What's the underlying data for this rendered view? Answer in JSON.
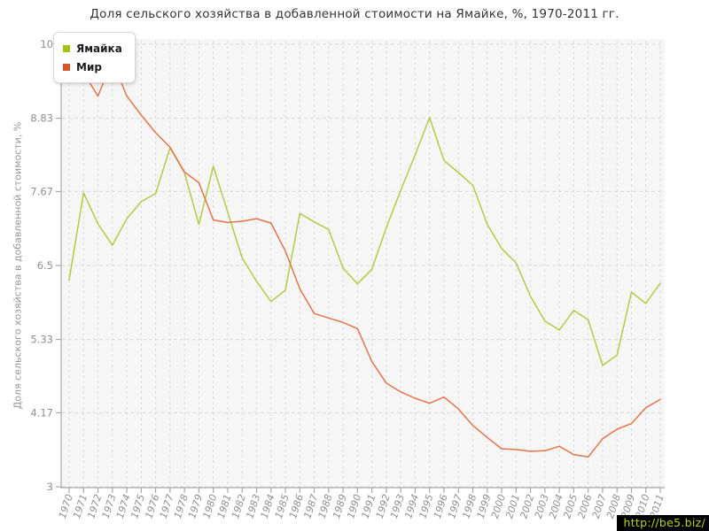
{
  "title": "Доля сельского хозяйства в добавленной стоимости на Ямайке, %, 1970-2011 гг.",
  "watermark": "http://be5.biz/",
  "chart_data": {
    "type": "line",
    "title": "Доля сельского хозяйства в добавленной стоимости на Ямайке, %, 1970-2011 гг.",
    "xlabel": "",
    "ylabel": "Доля сельского хозяйства в добавленной стоимости, %",
    "ylim": [
      3,
      10
    ],
    "grid": true,
    "legend_position": "top-left",
    "plot_bg": "#f6f6f6",
    "grid_color": "#dcdcdc",
    "axis_color": "#a9a9a9",
    "label_color": "#8f8f8f",
    "y_ticks": [
      "10",
      "8.83",
      "7.67",
      "6.5",
      "5.33",
      "4.17",
      "3"
    ],
    "y_tick_values": [
      10,
      8.83,
      7.67,
      6.5,
      5.33,
      4.17,
      3
    ],
    "x": [
      1970,
      1971,
      1972,
      1973,
      1974,
      1975,
      1976,
      1977,
      1978,
      1979,
      1980,
      1981,
      1982,
      1983,
      1984,
      1985,
      1986,
      1987,
      1988,
      1989,
      1990,
      1991,
      1992,
      1993,
      1994,
      1995,
      1996,
      1997,
      1998,
      1999,
      2000,
      2001,
      2002,
      2003,
      2004,
      2005,
      2006,
      2007,
      2008,
      2009,
      2010,
      2011
    ],
    "series": [
      {
        "name": "Ямайка",
        "color": "#b3cb44",
        "swatch_color": "#a2c613",
        "values": [
          6.27,
          7.65,
          7.16,
          6.82,
          7.24,
          7.51,
          7.64,
          8.36,
          7.97,
          7.15,
          8.07,
          7.34,
          6.62,
          6.25,
          5.93,
          6.11,
          7.32,
          7.19,
          7.07,
          6.46,
          6.21,
          6.44,
          7.1,
          7.69,
          8.25,
          8.84,
          8.16,
          7.97,
          7.77,
          7.15,
          6.77,
          6.54,
          6.01,
          5.62,
          5.48,
          5.79,
          5.64,
          4.92,
          5.08,
          6.08,
          5.9,
          6.22
        ]
      },
      {
        "name": "Мир",
        "color": "#e5734a",
        "swatch_color": "#dd5526",
        "values": [
          9.97,
          9.55,
          9.18,
          9.74,
          9.18,
          8.88,
          8.6,
          8.37,
          7.98,
          7.81,
          7.22,
          7.18,
          7.2,
          7.24,
          7.17,
          6.73,
          6.13,
          5.74,
          5.67,
          5.6,
          5.5,
          4.98,
          4.64,
          4.5,
          4.4,
          4.32,
          4.42,
          4.23,
          3.97,
          3.78,
          3.6,
          3.59,
          3.56,
          3.57,
          3.64,
          3.51,
          3.47,
          3.76,
          3.91,
          4.0,
          4.25,
          4.38
        ]
      }
    ]
  }
}
